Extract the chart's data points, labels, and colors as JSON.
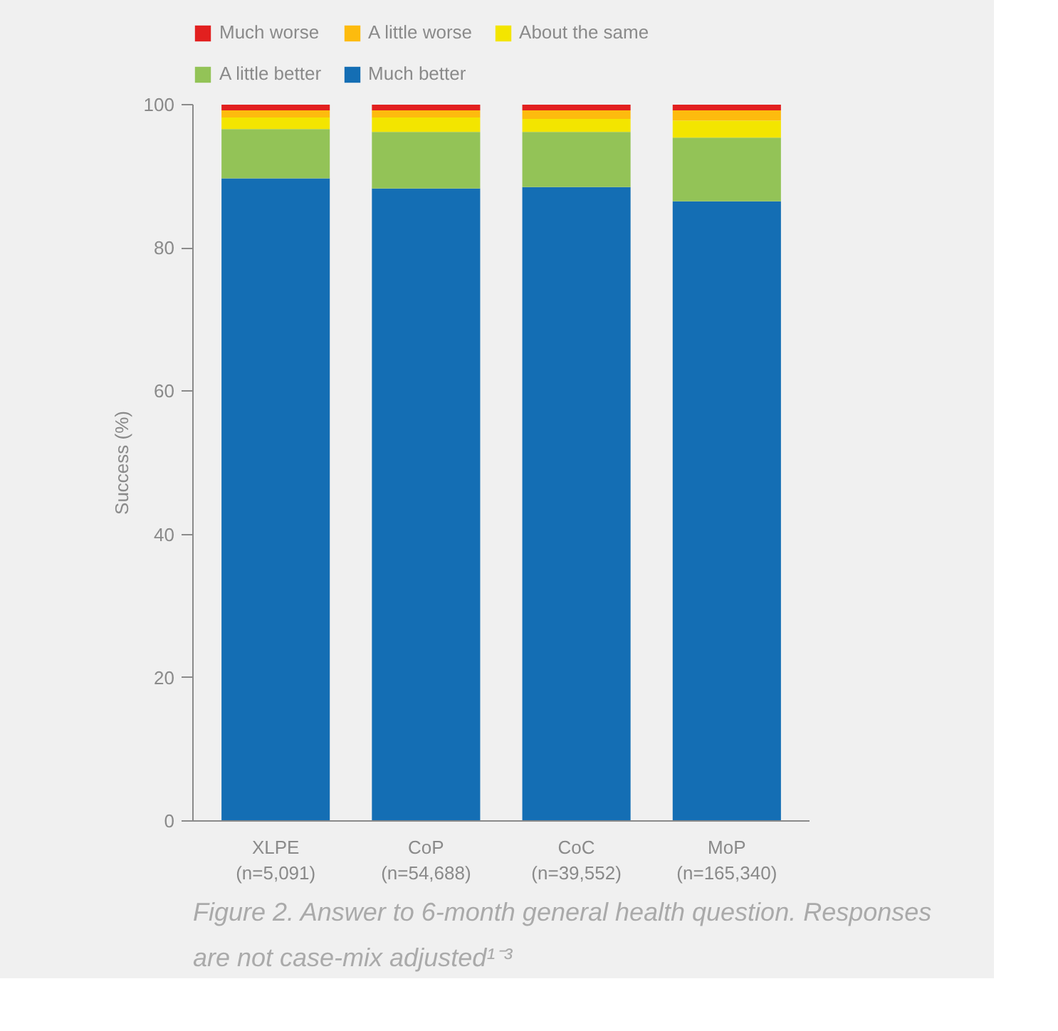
{
  "chart_data": {
    "type": "bar",
    "stacked": true,
    "ylabel": "Success (%)",
    "title": "Figure 2. Answer to 6-month general health question. Responses are not case-mix adjusted¹⁻³",
    "categories": [
      "XLPE\n(n=5,091)",
      "CoP\n(n=54,688)",
      "CoC\n(n=39,552)",
      "MoP\n(n=165,340)"
    ],
    "series": [
      {
        "name": "Much better",
        "color": "#146eb4",
        "values": [
          89.7,
          88.3,
          88.5,
          86.5
        ]
      },
      {
        "name": "A little better",
        "color": "#93c357",
        "values": [
          6.9,
          7.9,
          7.7,
          8.9
        ]
      },
      {
        "name": "About the same",
        "color": "#f3e500",
        "values": [
          1.6,
          2.0,
          1.8,
          2.4
        ]
      },
      {
        "name": "A little worse",
        "color": "#fdbb0e",
        "values": [
          1.0,
          1.0,
          1.2,
          1.4
        ]
      },
      {
        "name": "Much worse",
        "color": "#e2201f",
        "values": [
          0.8,
          0.8,
          0.8,
          0.8
        ]
      }
    ],
    "ylim": [
      0,
      100
    ],
    "yticks": [
      0,
      20,
      40,
      60,
      80,
      100
    ],
    "grid": false,
    "legend": "top"
  }
}
